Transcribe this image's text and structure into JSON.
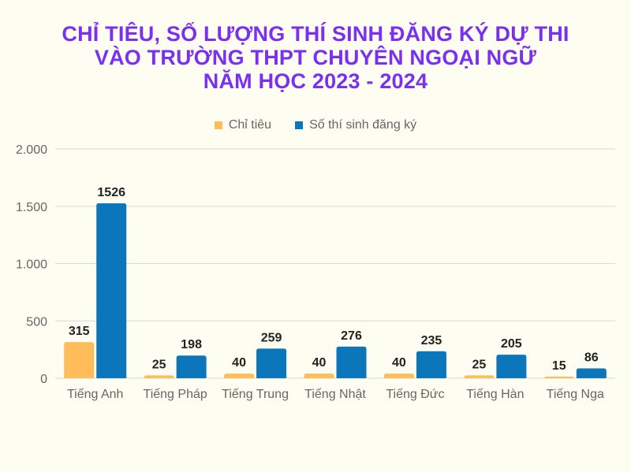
{
  "title_lines": [
    "CHỈ TIÊU, SỐ LƯỢNG THÍ SINH ĐĂNG KÝ DỰ THI",
    "VÀO TRƯỜNG THPT CHUYÊN NGOẠI NGỮ",
    "NĂM HỌC 2023 - 2024"
  ],
  "chart_data": {
    "type": "bar",
    "categories": [
      "Tiếng Anh",
      "Tiếng Pháp",
      "Tiếng Trung",
      "Tiếng Nhật",
      "Tiếng Đức",
      "Tiếng Hàn",
      "Tiếng Nga"
    ],
    "series": [
      {
        "name": "Chỉ tiêu",
        "values": [
          315,
          25,
          40,
          40,
          40,
          25,
          15
        ],
        "color": "#ffbd59"
      },
      {
        "name": "Số thí sinh đăng ký",
        "values": [
          1526,
          198,
          259,
          276,
          235,
          205,
          86
        ],
        "color": "#0b76ba"
      }
    ],
    "ylim": [
      0,
      2000
    ],
    "yticks": [
      {
        "value": 0,
        "label": "0"
      },
      {
        "value": 500,
        "label": "500"
      },
      {
        "value": 1000,
        "label": "1.000"
      },
      {
        "value": 1500,
        "label": "1.500"
      },
      {
        "value": 2000,
        "label": "2.000"
      }
    ],
    "legend_position": "top-center",
    "grid": true
  }
}
